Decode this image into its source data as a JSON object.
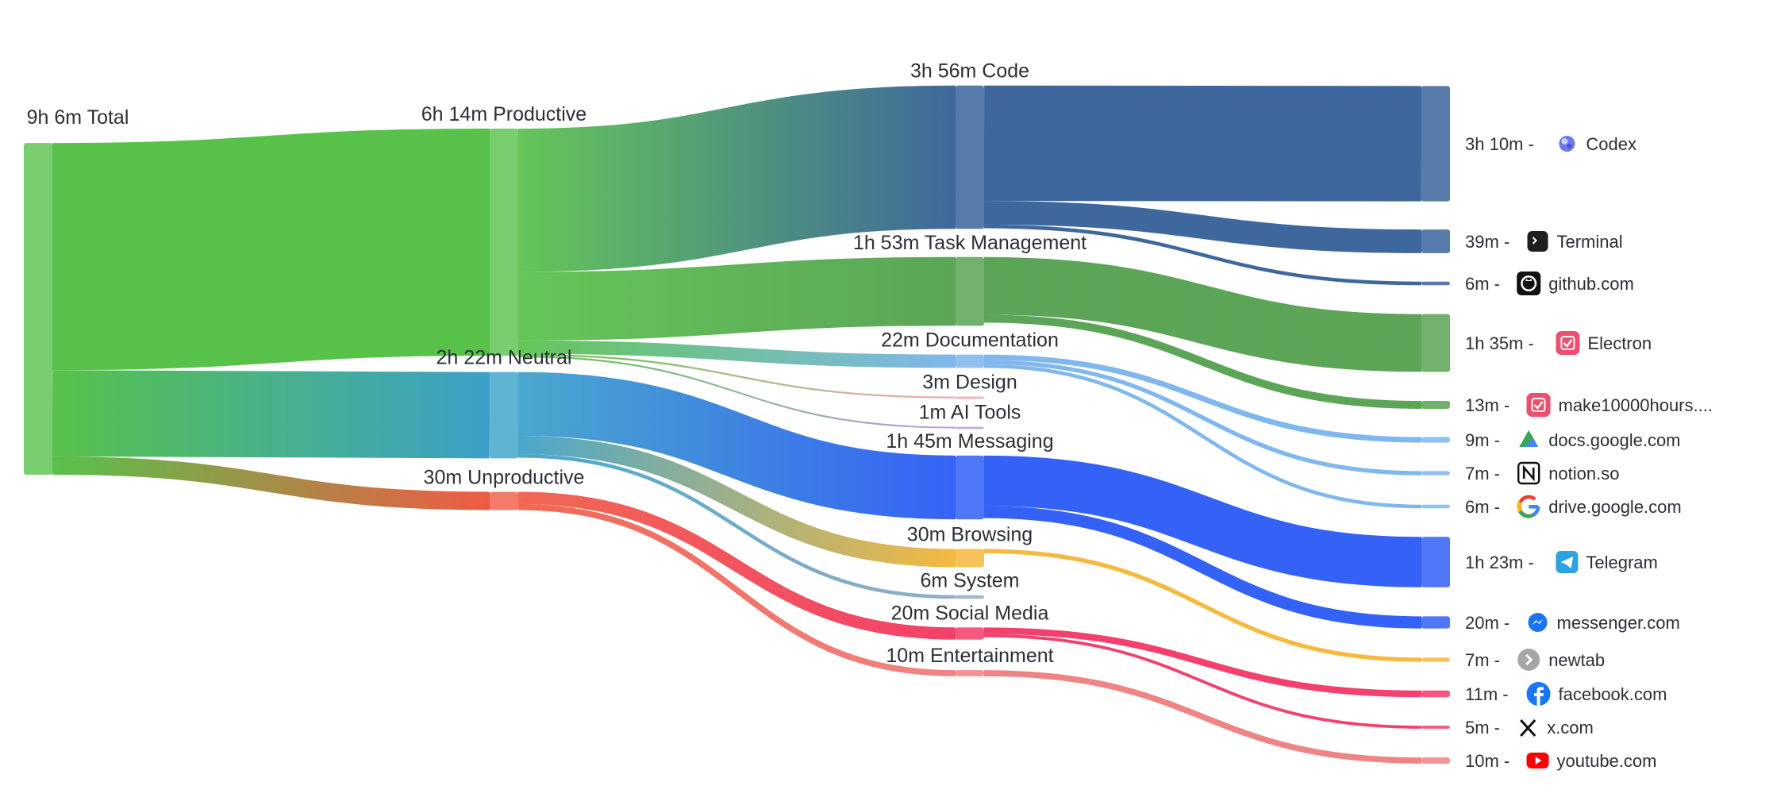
{
  "chart_data": {
    "type": "sankey",
    "unit": "minutes",
    "nodes": [
      {
        "id": "total",
        "label": "9h 6m Total",
        "value": 546,
        "color": "#57c14a"
      },
      {
        "id": "productive",
        "label": "6h 14m Productive",
        "value": 374,
        "color": "#57c14a"
      },
      {
        "id": "neutral",
        "label": "2h 22m Neutral",
        "value": 142,
        "color": "#3aa0c8"
      },
      {
        "id": "unproductive",
        "label": "30m Unproductive",
        "value": 30,
        "color": "#f05a44"
      },
      {
        "id": "code",
        "label": "3h 56m Code",
        "value": 236,
        "color": "#2e5b95"
      },
      {
        "id": "taskmgmt",
        "label": "1h 53m Task Management",
        "value": 113,
        "color": "#4e9d49"
      },
      {
        "id": "documentation",
        "label": "22m Documentation",
        "value": 22,
        "color": "#74b1ec"
      },
      {
        "id": "design",
        "label": "3m Design",
        "value": 3,
        "color": "#e8a7ad"
      },
      {
        "id": "aitools",
        "label": "1m AI Tools",
        "value": 1,
        "color": "#b79bd8"
      },
      {
        "id": "messaging",
        "label": "1h 45m Messaging",
        "value": 105,
        "color": "#2455f5"
      },
      {
        "id": "browsing",
        "label": "30m Browsing",
        "value": 30,
        "color": "#f5b330"
      },
      {
        "id": "system",
        "label": "6m System",
        "value": 6,
        "color": "#8ea7c2"
      },
      {
        "id": "social",
        "label": "20m Social Media",
        "value": 20,
        "color": "#f2305f"
      },
      {
        "id": "entertainment",
        "label": "10m Entertainment",
        "value": 10,
        "color": "#ee7a7a"
      },
      {
        "id": "codex",
        "label": "3h 10m -",
        "app": "Codex",
        "icon": "codex-icon",
        "value": 190,
        "color": "#2e5b95"
      },
      {
        "id": "terminal",
        "label": "39m -",
        "app": "Terminal",
        "icon": "terminal-icon",
        "value": 39,
        "color": "#2e5b95"
      },
      {
        "id": "github",
        "label": "6m -",
        "app": "github.com",
        "icon": "github-icon",
        "value": 6,
        "color": "#2e5b95"
      },
      {
        "id": "electron",
        "label": "1h 35m -",
        "app": "Electron",
        "icon": "electron-app-icon",
        "value": 95,
        "color": "#4e9d49"
      },
      {
        "id": "make10000",
        "label": "13m -",
        "app": "make10000hours....",
        "icon": "make10000hours-icon",
        "value": 13,
        "color": "#4e9d49"
      },
      {
        "id": "docs",
        "label": "9m -",
        "app": "docs.google.com",
        "icon": "google-docs-icon",
        "value": 9,
        "color": "#74b1ec"
      },
      {
        "id": "notion",
        "label": "7m -",
        "app": "notion.so",
        "icon": "notion-icon",
        "value": 7,
        "color": "#74b1ec"
      },
      {
        "id": "drive",
        "label": "6m -",
        "app": "drive.google.com",
        "icon": "google-icon",
        "value": 6,
        "color": "#74b1ec"
      },
      {
        "id": "telegram",
        "label": "1h 23m -",
        "app": "Telegram",
        "icon": "telegram-icon",
        "value": 83,
        "color": "#2455f5"
      },
      {
        "id": "messenger",
        "label": "20m -",
        "app": "messenger.com",
        "icon": "messenger-icon",
        "value": 20,
        "color": "#2455f5"
      },
      {
        "id": "newtab",
        "label": "7m -",
        "app": "newtab",
        "icon": "newtab-icon",
        "value": 7,
        "color": "#f5b330"
      },
      {
        "id": "facebook",
        "label": "11m -",
        "app": "facebook.com",
        "icon": "facebook-icon",
        "value": 11,
        "color": "#f2305f"
      },
      {
        "id": "x",
        "label": "5m -",
        "app": "x.com",
        "icon": "x-icon",
        "value": 5,
        "color": "#f2305f"
      },
      {
        "id": "youtube",
        "label": "10m -",
        "app": "youtube.com",
        "icon": "youtube-icon",
        "value": 10,
        "color": "#ee7a7a"
      }
    ],
    "links": [
      {
        "source": "total",
        "target": "productive",
        "value": 374
      },
      {
        "source": "total",
        "target": "neutral",
        "value": 142
      },
      {
        "source": "total",
        "target": "unproductive",
        "value": 30
      },
      {
        "source": "productive",
        "target": "code",
        "value": 236
      },
      {
        "source": "productive",
        "target": "taskmgmt",
        "value": 113
      },
      {
        "source": "productive",
        "target": "documentation",
        "value": 22
      },
      {
        "source": "productive",
        "target": "design",
        "value": 3
      },
      {
        "source": "productive",
        "target": "aitools",
        "value": 1
      },
      {
        "source": "neutral",
        "target": "messaging",
        "value": 105
      },
      {
        "source": "neutral",
        "target": "browsing",
        "value": 30
      },
      {
        "source": "neutral",
        "target": "system",
        "value": 6
      },
      {
        "source": "unproductive",
        "target": "social",
        "value": 20
      },
      {
        "source": "unproductive",
        "target": "entertainment",
        "value": 10
      },
      {
        "source": "code",
        "target": "codex",
        "value": 190
      },
      {
        "source": "code",
        "target": "terminal",
        "value": 39
      },
      {
        "source": "code",
        "target": "github",
        "value": 6
      },
      {
        "source": "taskmgmt",
        "target": "electron",
        "value": 95
      },
      {
        "source": "taskmgmt",
        "target": "make10000",
        "value": 13
      },
      {
        "source": "documentation",
        "target": "docs",
        "value": 9
      },
      {
        "source": "documentation",
        "target": "notion",
        "value": 7
      },
      {
        "source": "documentation",
        "target": "drive",
        "value": 6
      },
      {
        "source": "messaging",
        "target": "telegram",
        "value": 83
      },
      {
        "source": "messaging",
        "target": "messenger",
        "value": 20
      },
      {
        "source": "browsing",
        "target": "newtab",
        "value": 7
      },
      {
        "source": "social",
        "target": "facebook",
        "value": 11
      },
      {
        "source": "social",
        "target": "x",
        "value": 5
      },
      {
        "source": "entertainment",
        "target": "youtube",
        "value": 10
      }
    ]
  }
}
